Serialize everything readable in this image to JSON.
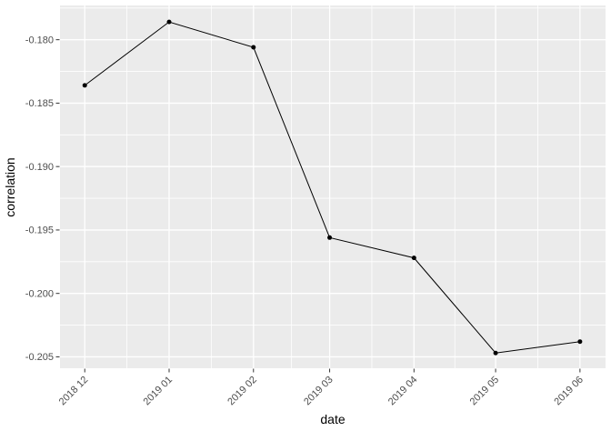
{
  "chart_data": {
    "type": "line",
    "title": "",
    "xlabel": "date",
    "ylabel": "correlation",
    "categories": [
      "2018 12",
      "2019 01",
      "2019 02",
      "2019 03",
      "2019 04",
      "2019 05",
      "2019 06"
    ],
    "x_days": [
      0,
      31,
      62,
      90,
      121,
      151,
      182
    ],
    "series": [
      {
        "name": "correlation",
        "values": [
          -0.1836,
          -0.1786,
          -0.1806,
          -0.1956,
          -0.1972,
          -0.2047,
          -0.2038
        ]
      }
    ],
    "y_ticks": [
      -0.18,
      -0.185,
      -0.19,
      -0.195,
      -0.2,
      -0.205
    ],
    "y_tick_labels": [
      "-0.180",
      "-0.185",
      "-0.190",
      "-0.195",
      "-0.200",
      "-0.205"
    ],
    "y_minor_step": 0.0025,
    "ylim": [
      -0.2059,
      -0.1773
    ],
    "xlim_days": [
      -9.1,
      191.4
    ],
    "grid": true,
    "legend": "none",
    "x_label_angle_deg": 45,
    "colors": {
      "figure_bg": "#FFFFFF",
      "panel_bg": "#EBEBEB",
      "grid_major": "#FFFFFF",
      "grid_minor": "#FFFFFF",
      "line": "#000000",
      "point": "#000000",
      "axis_text": "#4D4D4D",
      "axis_title": "#000000",
      "tick_mark": "#333333"
    }
  }
}
